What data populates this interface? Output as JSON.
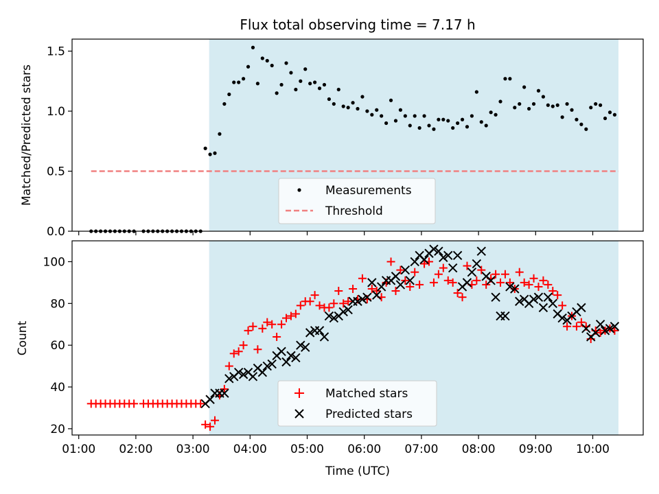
{
  "chart_data": [
    {
      "type": "scatter",
      "title": "Flux total observing time = 7.17 h",
      "xlabel": "",
      "ylabel": "Matched/Predicted stars",
      "xlim": [
        "00:53",
        "10:53"
      ],
      "ylim": [
        0,
        1.6
      ],
      "yticks": [
        0.0,
        0.5,
        1.0,
        1.5
      ],
      "ytick_labels": [
        "0.0",
        "0.5",
        "1.0",
        "1.5"
      ],
      "xticks": [
        "01:00",
        "02:00",
        "03:00",
        "04:00",
        "05:00",
        "06:00",
        "07:00",
        "08:00",
        "09:00",
        "10:00"
      ],
      "shaded_region": {
        "x_start": "03:17",
        "x_end": "10:27",
        "color": "#add8e6"
      },
      "legend": {
        "placement": "lower-center",
        "entries": [
          {
            "label": "Measurements",
            "marker": "dot",
            "color": "#000000"
          },
          {
            "label": "Threshold",
            "marker": "dashed-line",
            "color": "#f08080"
          }
        ]
      },
      "threshold": {
        "name": "Threshold",
        "value": 0.5,
        "x_start": "01:13",
        "x_end": "10:27",
        "color": "#f08080"
      },
      "series": [
        {
          "name": "Measurements",
          "color": "#000000",
          "x": [
            "01:13",
            "01:18",
            "01:23",
            "01:28",
            "01:33",
            "01:38",
            "01:43",
            "01:48",
            "01:53",
            "01:58",
            "02:08",
            "02:13",
            "02:18",
            "02:23",
            "02:28",
            "02:33",
            "02:38",
            "02:43",
            "02:48",
            "02:53",
            "02:58",
            "03:03",
            "03:08",
            "03:13",
            "03:18",
            "03:23",
            "03:28",
            "03:33",
            "03:38",
            "03:43",
            "03:48",
            "03:53",
            "03:58",
            "04:03",
            "04:08",
            "04:13",
            "04:18",
            "04:23",
            "04:28",
            "04:33",
            "04:38",
            "04:43",
            "04:48",
            "04:53",
            "04:58",
            "05:03",
            "05:08",
            "05:13",
            "05:18",
            "05:23",
            "05:28",
            "05:33",
            "05:38",
            "05:43",
            "05:48",
            "05:53",
            "05:58",
            "06:03",
            "06:08",
            "06:13",
            "06:18",
            "06:23",
            "06:28",
            "06:33",
            "06:38",
            "06:43",
            "06:48",
            "06:53",
            "06:58",
            "07:03",
            "07:08",
            "07:13",
            "07:18",
            "07:23",
            "07:28",
            "07:33",
            "07:38",
            "07:43",
            "07:48",
            "07:53",
            "07:58",
            "08:03",
            "08:08",
            "08:13",
            "08:18",
            "08:23",
            "08:28",
            "08:33",
            "08:38",
            "08:43",
            "08:48",
            "08:53",
            "08:58",
            "09:03",
            "09:08",
            "09:13",
            "09:18",
            "09:23",
            "09:28",
            "09:33",
            "09:38",
            "09:43",
            "09:48",
            "09:53",
            "09:58",
            "10:03",
            "10:08",
            "10:13",
            "10:18",
            "10:23"
          ],
          "y": [
            0,
            0,
            0,
            0,
            0,
            0,
            0,
            0,
            0,
            0,
            0,
            0,
            0,
            0,
            0,
            0,
            0,
            0,
            0,
            0,
            0,
            0,
            0,
            0.69,
            0.64,
            0.65,
            0.81,
            1.06,
            1.14,
            1.24,
            1.24,
            1.27,
            1.37,
            1.53,
            1.23,
            1.44,
            1.42,
            1.38,
            1.15,
            1.22,
            1.4,
            1.32,
            1.18,
            1.25,
            1.35,
            1.23,
            1.24,
            1.19,
            1.22,
            1.1,
            1.06,
            1.18,
            1.04,
            1.03,
            1.07,
            1.02,
            1.12,
            1.0,
            0.97,
            1.01,
            0.96,
            0.9,
            1.09,
            0.92,
            1.01,
            0.96,
            0.88,
            0.96,
            0.86,
            0.96,
            0.88,
            0.85,
            0.93,
            0.93,
            0.92,
            0.86,
            0.9,
            0.93,
            0.87,
            0.96,
            1.16,
            0.91,
            0.88,
            0.99,
            0.97,
            1.08,
            1.27,
            1.27,
            1.03,
            1.06,
            1.2,
            1.02,
            1.06,
            1.17,
            1.12,
            1.05,
            1.04,
            1.05,
            0.95,
            1.06,
            1.01,
            0.93,
            0.89,
            0.85,
            1.03,
            1.06,
            1.05,
            0.94,
            0.99,
            0.97
          ]
        }
      ]
    },
    {
      "type": "scatter",
      "title": "",
      "xlabel": "Time (UTC)",
      "ylabel": "Count",
      "xlim": [
        "00:53",
        "10:53"
      ],
      "ylim": [
        17,
        110
      ],
      "yticks": [
        20,
        40,
        60,
        80,
        100
      ],
      "ytick_labels": [
        "20",
        "40",
        "60",
        "80",
        "100"
      ],
      "xticks": [
        "01:00",
        "02:00",
        "03:00",
        "04:00",
        "05:00",
        "06:00",
        "07:00",
        "08:00",
        "09:00",
        "10:00"
      ],
      "xtick_labels": [
        "01:00",
        "02:00",
        "03:00",
        "04:00",
        "05:00",
        "06:00",
        "07:00",
        "08:00",
        "09:00",
        "10:00"
      ],
      "shaded_region": {
        "x_start": "03:17",
        "x_end": "10:27",
        "color": "#add8e6"
      },
      "legend": {
        "placement": "lower-center",
        "entries": [
          {
            "label": "Matched stars",
            "marker": "plus",
            "color": "#ff0000"
          },
          {
            "label": "Predicted stars",
            "marker": "x",
            "color": "#000000"
          }
        ]
      },
      "series": [
        {
          "name": "Matched stars",
          "color": "#ff0000",
          "marker": "plus",
          "x": [
            "01:13",
            "01:18",
            "01:23",
            "01:28",
            "01:33",
            "01:38",
            "01:43",
            "01:48",
            "01:53",
            "01:58",
            "02:08",
            "02:13",
            "02:18",
            "02:23",
            "02:28",
            "02:33",
            "02:38",
            "02:43",
            "02:48",
            "02:53",
            "02:58",
            "03:03",
            "03:08",
            "03:13",
            "03:18",
            "03:23",
            "03:28",
            "03:33",
            "03:38",
            "03:43",
            "03:48",
            "03:53",
            "03:58",
            "04:03",
            "04:08",
            "04:13",
            "04:18",
            "04:23",
            "04:28",
            "04:33",
            "04:38",
            "04:43",
            "04:48",
            "04:53",
            "04:58",
            "05:03",
            "05:08",
            "05:13",
            "05:18",
            "05:23",
            "05:28",
            "05:33",
            "05:38",
            "05:43",
            "05:48",
            "05:53",
            "05:58",
            "06:03",
            "06:08",
            "06:13",
            "06:18",
            "06:23",
            "06:28",
            "06:33",
            "06:38",
            "06:43",
            "06:48",
            "06:53",
            "06:58",
            "07:03",
            "07:08",
            "07:13",
            "07:18",
            "07:23",
            "07:28",
            "07:33",
            "07:38",
            "07:43",
            "07:48",
            "07:53",
            "07:58",
            "08:03",
            "08:08",
            "08:13",
            "08:18",
            "08:23",
            "08:28",
            "08:33",
            "08:38",
            "08:43",
            "08:48",
            "08:53",
            "08:58",
            "09:03",
            "09:08",
            "09:13",
            "09:18",
            "09:23",
            "09:28",
            "09:33",
            "09:38",
            "09:43",
            "09:48",
            "09:53",
            "09:58",
            "10:03",
            "10:08",
            "10:13",
            "10:18",
            "10:23"
          ],
          "y": [
            32,
            32,
            32,
            32,
            32,
            32,
            32,
            32,
            32,
            32,
            32,
            32,
            32,
            32,
            32,
            32,
            32,
            32,
            32,
            32,
            32,
            32,
            32,
            22,
            21,
            24,
            36,
            39,
            50,
            56,
            57,
            60,
            67,
            69,
            58,
            68,
            71,
            70,
            64,
            70,
            73,
            74,
            75,
            79,
            81,
            81,
            84,
            79,
            78,
            78,
            80,
            86,
            80,
            81,
            87,
            82,
            92,
            82,
            87,
            86,
            83,
            90,
            100,
            86,
            96,
            91,
            88,
            95,
            89,
            99,
            100,
            90,
            94,
            97,
            91,
            90,
            85,
            83,
            98,
            89,
            91,
            96,
            89,
            92,
            94,
            90,
            94,
            90,
            87,
            95,
            90,
            89,
            92,
            88,
            91,
            89,
            86,
            84,
            79,
            69,
            74,
            69,
            71,
            69,
            63,
            67,
            66,
            67,
            68,
            67
          ]
        },
        {
          "name": "Predicted stars",
          "color": "#000000",
          "marker": "x",
          "x": [
            "03:13",
            "03:18",
            "03:23",
            "03:28",
            "03:33",
            "03:38",
            "03:43",
            "03:48",
            "03:53",
            "03:58",
            "04:03",
            "04:08",
            "04:13",
            "04:18",
            "04:23",
            "04:28",
            "04:33",
            "04:38",
            "04:43",
            "04:48",
            "04:53",
            "04:58",
            "05:03",
            "05:08",
            "05:13",
            "05:18",
            "05:23",
            "05:28",
            "05:33",
            "05:38",
            "05:43",
            "05:48",
            "05:53",
            "05:58",
            "06:03",
            "06:08",
            "06:13",
            "06:18",
            "06:23",
            "06:28",
            "06:33",
            "06:38",
            "06:43",
            "06:48",
            "06:53",
            "06:58",
            "07:03",
            "07:08",
            "07:13",
            "07:18",
            "07:23",
            "07:28",
            "07:33",
            "07:38",
            "07:43",
            "07:48",
            "07:53",
            "07:58",
            "08:03",
            "08:08",
            "08:13",
            "08:18",
            "08:23",
            "08:28",
            "08:33",
            "08:38",
            "08:43",
            "08:48",
            "08:53",
            "08:58",
            "09:03",
            "09:08",
            "09:13",
            "09:18",
            "09:23",
            "09:28",
            "09:33",
            "09:38",
            "09:43",
            "09:48",
            "09:53",
            "09:58",
            "10:03",
            "10:08",
            "10:13",
            "10:18",
            "10:23"
          ],
          "y": [
            32,
            34,
            37,
            37,
            37,
            44,
            45,
            47,
            46,
            47,
            45,
            49,
            47,
            50,
            51,
            55,
            57,
            52,
            55,
            54,
            60,
            59,
            66,
            67,
            67,
            64,
            74,
            73,
            74,
            76,
            77,
            81,
            81,
            82,
            83,
            90,
            84,
            88,
            91,
            91,
            93,
            89,
            96,
            91,
            100,
            103,
            101,
            104,
            106,
            105,
            102,
            103,
            97,
            103,
            88,
            90,
            95,
            99,
            105,
            93,
            91,
            83,
            74,
            74,
            88,
            87,
            81,
            82,
            80,
            82,
            83,
            78,
            83,
            80,
            75,
            73,
            72,
            74,
            76,
            78,
            68,
            64,
            66,
            70,
            67,
            68,
            69
          ]
        }
      ]
    }
  ]
}
